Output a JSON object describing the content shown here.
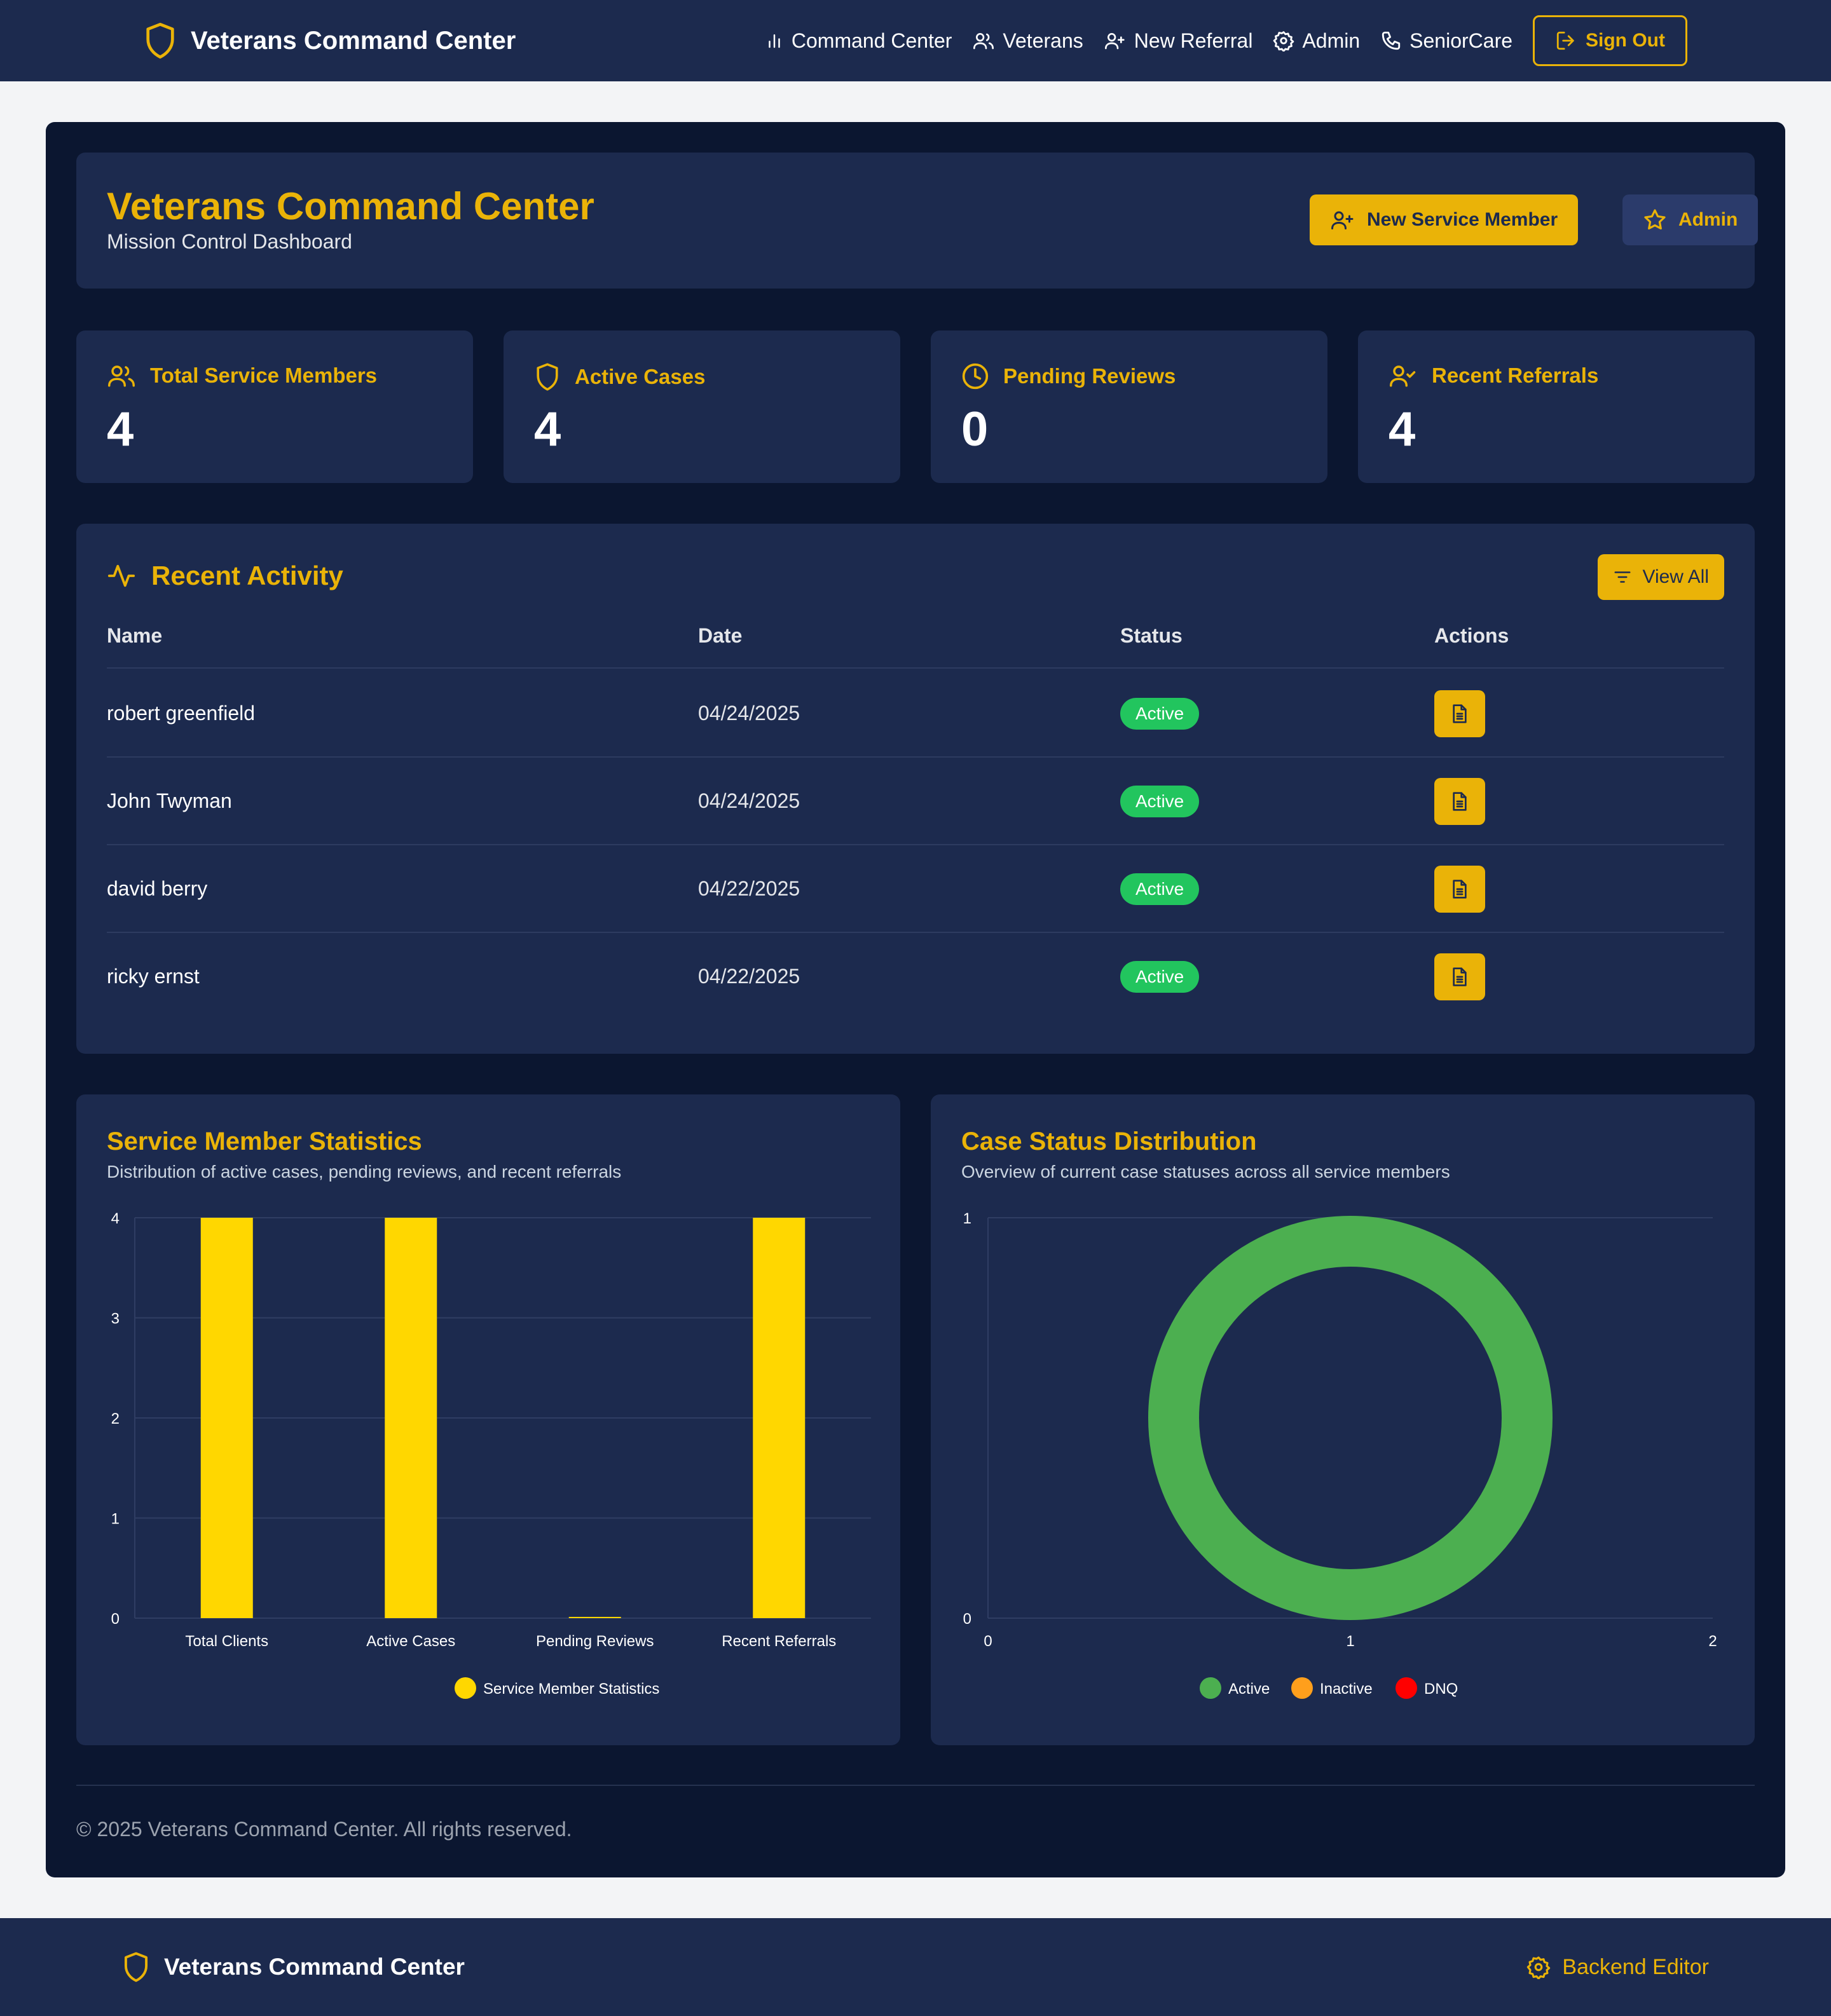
{
  "nav": {
    "brand": "Veterans Command Center",
    "links": [
      {
        "label": "Command Center",
        "icon": "bar-chart-icon"
      },
      {
        "label": "Veterans",
        "icon": "users-icon"
      },
      {
        "label": "New Referral",
        "icon": "user-plus-icon"
      },
      {
        "label": "Admin",
        "icon": "gear-icon"
      },
      {
        "label": "SeniorCare",
        "icon": "phone-icon"
      }
    ],
    "signout": "Sign Out"
  },
  "header": {
    "title": "Veterans Command Center",
    "subtitle": "Mission Control Dashboard",
    "new_member_btn": "New Service Member",
    "admin_btn": "Admin"
  },
  "stats": [
    {
      "label": "Total Service Members",
      "value": "4",
      "icon": "users-icon"
    },
    {
      "label": "Active Cases",
      "value": "4",
      "icon": "shield-icon"
    },
    {
      "label": "Pending Reviews",
      "value": "0",
      "icon": "clock-icon"
    },
    {
      "label": "Recent Referrals",
      "value": "4",
      "icon": "user-check-icon"
    }
  ],
  "activity": {
    "title": "Recent Activity",
    "view_all": "View All",
    "columns": [
      "Name",
      "Date",
      "Status",
      "Actions"
    ],
    "rows": [
      {
        "name": "robert greenfield",
        "date": "04/24/2025",
        "status": "Active"
      },
      {
        "name": "John Twyman",
        "date": "04/24/2025",
        "status": "Active"
      },
      {
        "name": "david berry",
        "date": "04/22/2025",
        "status": "Active"
      },
      {
        "name": "ricky ernst",
        "date": "04/22/2025",
        "status": "Active"
      }
    ]
  },
  "charts": {
    "stats_title": "Service Member Statistics",
    "stats_subtitle": "Distribution of active cases, pending reviews, and recent referrals",
    "dist_title": "Case Status Distribution",
    "dist_subtitle": "Overview of current case statuses across all service members"
  },
  "chart_data": [
    {
      "type": "bar",
      "title": "Service Member Statistics",
      "categories": [
        "Total Clients",
        "Active Cases",
        "Pending Reviews",
        "Recent Referrals"
      ],
      "series": [
        {
          "name": "Service Member Statistics",
          "values": [
            4,
            4,
            0,
            4
          ],
          "color": "#ffd700"
        }
      ],
      "ylim": [
        0,
        4
      ],
      "yticks": [
        "0",
        "1",
        "2",
        "3",
        "4"
      ],
      "grid": true,
      "legend": "bottom"
    },
    {
      "type": "pie",
      "title": "Case Status Distribution",
      "categories": [
        "Active",
        "Inactive",
        "DNQ"
      ],
      "values": [
        4,
        0,
        0
      ],
      "colors": [
        "#4caf50",
        "#ff9f1c",
        "#ff0000"
      ],
      "donut": true,
      "xticks": [
        "0",
        "1",
        "2"
      ],
      "yticks": [
        "0",
        "1"
      ],
      "legend": "bottom"
    }
  ],
  "footer": {
    "copyright": "© 2025 Veterans Command Center. All rights reserved."
  },
  "bottombar": {
    "brand": "Veterans Command Center",
    "editor": "Backend Editor"
  },
  "colors": {
    "accent": "#eab308",
    "navy": "#1c2a4e",
    "deep": "#0b1630",
    "success": "#22c55e"
  }
}
